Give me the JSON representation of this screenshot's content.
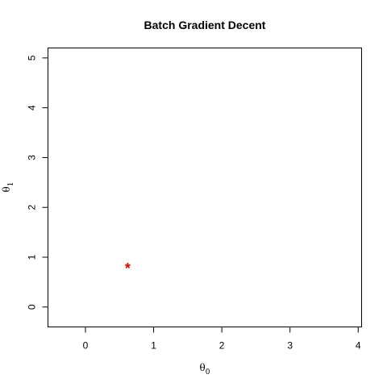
{
  "chart_data": {
    "type": "scatter",
    "title": "Batch Gradient Decent",
    "xlabel": {
      "base": "θ",
      "sub": "0"
    },
    "ylabel": {
      "base": "θ",
      "sub": "1"
    },
    "xlim": [
      -0.55,
      4.05
    ],
    "ylim": [
      -0.4,
      5.2
    ],
    "xticks": [
      0,
      1,
      2,
      3,
      4
    ],
    "yticks": [
      0,
      1,
      2,
      3,
      4,
      5
    ],
    "xtick_labels": [
      "0",
      "1",
      "2",
      "3",
      "4"
    ],
    "ytick_labels": [
      "0",
      "1",
      "2",
      "3",
      "4",
      "5"
    ],
    "grid": false,
    "points": [
      {
        "x": 0.62,
        "y": 0.79,
        "marker": "*",
        "color": "#dd0000"
      }
    ]
  }
}
